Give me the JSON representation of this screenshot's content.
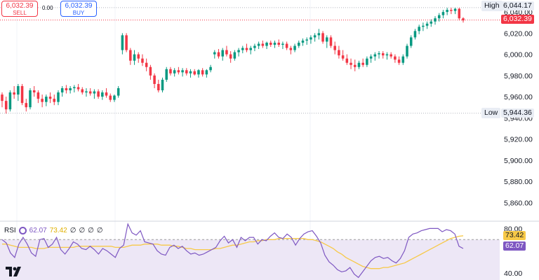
{
  "trade": {
    "sell_price": "6,032.39",
    "sell_label": "SELL",
    "spread": "0.00",
    "buy_price": "6,032.39",
    "buy_label": "BUY"
  },
  "markers": {
    "high_label": "High",
    "high_value": "6,044.17",
    "low_label": "Low",
    "low_value": "5,944.36",
    "last_price": "6,032.39"
  },
  "rsi": {
    "label": "RSI",
    "value": "62.07",
    "ma_value": "73.42",
    "extra_values": [
      "∅",
      "∅",
      "∅",
      "∅"
    ]
  },
  "colors": {
    "up": "#089981",
    "down": "#f23645",
    "rsi_line": "#7e57c2",
    "rsi_ma": "#f7c948",
    "rsi_band": "#ede7f6"
  },
  "chart_data": [
    {
      "type": "candlestick",
      "yticks": [
        5860,
        5880,
        5900,
        5920,
        5940,
        5960,
        5980,
        6000,
        6020,
        6040
      ],
      "ylim": [
        5845,
        6050
      ],
      "high": 6044.17,
      "low": 5944.36,
      "last": 6032.39,
      "candles": [
        {
          "o": 5962,
          "h": 5964,
          "l": 5950,
          "c": 5956
        },
        {
          "o": 5956,
          "h": 5960,
          "l": 5944,
          "c": 5948
        },
        {
          "o": 5948,
          "h": 5966,
          "l": 5946,
          "c": 5964
        },
        {
          "o": 5964,
          "h": 5970,
          "l": 5958,
          "c": 5962
        },
        {
          "o": 5962,
          "h": 5972,
          "l": 5956,
          "c": 5970
        },
        {
          "o": 5970,
          "h": 5972,
          "l": 5952,
          "c": 5954
        },
        {
          "o": 5954,
          "h": 5958,
          "l": 5946,
          "c": 5950
        },
        {
          "o": 5950,
          "h": 5968,
          "l": 5948,
          "c": 5966
        },
        {
          "o": 5966,
          "h": 5970,
          "l": 5960,
          "c": 5964
        },
        {
          "o": 5964,
          "h": 5966,
          "l": 5954,
          "c": 5958
        },
        {
          "o": 5958,
          "h": 5962,
          "l": 5950,
          "c": 5955
        },
        {
          "o": 5955,
          "h": 5962,
          "l": 5951,
          "c": 5960
        },
        {
          "o": 5960,
          "h": 5964,
          "l": 5954,
          "c": 5958
        },
        {
          "o": 5958,
          "h": 5962,
          "l": 5952,
          "c": 5955
        },
        {
          "o": 5955,
          "h": 5966,
          "l": 5952,
          "c": 5964
        },
        {
          "o": 5964,
          "h": 5970,
          "l": 5960,
          "c": 5968
        },
        {
          "o": 5968,
          "h": 5971,
          "l": 5963,
          "c": 5966
        },
        {
          "o": 5966,
          "h": 5970,
          "l": 5963,
          "c": 5968
        },
        {
          "o": 5968,
          "h": 5971,
          "l": 5964,
          "c": 5969
        },
        {
          "o": 5969,
          "h": 5972,
          "l": 5965,
          "c": 5967
        },
        {
          "o": 5967,
          "h": 5969,
          "l": 5962,
          "c": 5964
        },
        {
          "o": 5964,
          "h": 5968,
          "l": 5960,
          "c": 5965
        },
        {
          "o": 5965,
          "h": 5968,
          "l": 5961,
          "c": 5963
        },
        {
          "o": 5963,
          "h": 5967,
          "l": 5958,
          "c": 5965
        },
        {
          "o": 5965,
          "h": 5967,
          "l": 5958,
          "c": 5960
        },
        {
          "o": 5960,
          "h": 5966,
          "l": 5957,
          "c": 5964
        },
        {
          "o": 5964,
          "h": 5968,
          "l": 5959,
          "c": 5961
        },
        {
          "o": 5961,
          "h": 5963,
          "l": 5955,
          "c": 5957
        },
        {
          "o": 5957,
          "h": 5962,
          "l": 5955,
          "c": 5961
        },
        {
          "o": 5961,
          "h": 5970,
          "l": 5959,
          "c": 5968
        },
        {
          "o": 6004,
          "h": 6020,
          "l": 6000,
          "c": 6018
        },
        {
          "o": 6018,
          "h": 6020,
          "l": 6002,
          "c": 6004
        },
        {
          "o": 6004,
          "h": 6006,
          "l": 5990,
          "c": 5994
        },
        {
          "o": 5994,
          "h": 6004,
          "l": 5990,
          "c": 6000
        },
        {
          "o": 6000,
          "h": 6002,
          "l": 5992,
          "c": 5996
        },
        {
          "o": 5996,
          "h": 6000,
          "l": 5989,
          "c": 5992
        },
        {
          "o": 5992,
          "h": 5996,
          "l": 5984,
          "c": 5988
        },
        {
          "o": 5988,
          "h": 5990,
          "l": 5976,
          "c": 5980
        },
        {
          "o": 5980,
          "h": 5982,
          "l": 5968,
          "c": 5972
        },
        {
          "o": 5972,
          "h": 5976,
          "l": 5964,
          "c": 5966
        },
        {
          "o": 5966,
          "h": 5978,
          "l": 5964,
          "c": 5976
        },
        {
          "o": 5976,
          "h": 5988,
          "l": 5974,
          "c": 5986
        },
        {
          "o": 5986,
          "h": 5988,
          "l": 5980,
          "c": 5982
        },
        {
          "o": 5982,
          "h": 5987,
          "l": 5979,
          "c": 5985
        },
        {
          "o": 5985,
          "h": 5988,
          "l": 5981,
          "c": 5983
        },
        {
          "o": 5983,
          "h": 5987,
          "l": 5979,
          "c": 5985
        },
        {
          "o": 5985,
          "h": 5987,
          "l": 5980,
          "c": 5982
        },
        {
          "o": 5982,
          "h": 5986,
          "l": 5978,
          "c": 5984
        },
        {
          "o": 5984,
          "h": 5986,
          "l": 5980,
          "c": 5981
        },
        {
          "o": 5981,
          "h": 5986,
          "l": 5978,
          "c": 5985
        },
        {
          "o": 5985,
          "h": 5987,
          "l": 5979,
          "c": 5981
        },
        {
          "o": 5981,
          "h": 5986,
          "l": 5978,
          "c": 5985
        },
        {
          "o": 5985,
          "h": 5990,
          "l": 5983,
          "c": 5988
        },
        {
          "o": 6000,
          "h": 6004,
          "l": 5996,
          "c": 6002
        },
        {
          "o": 6002,
          "h": 6005,
          "l": 5996,
          "c": 5998
        },
        {
          "o": 5998,
          "h": 6006,
          "l": 5994,
          "c": 6004
        },
        {
          "o": 6004,
          "h": 6008,
          "l": 5998,
          "c": 6000
        },
        {
          "o": 6000,
          "h": 6003,
          "l": 5992,
          "c": 5996
        },
        {
          "o": 5996,
          "h": 6004,
          "l": 5994,
          "c": 6002
        },
        {
          "o": 6002,
          "h": 6006,
          "l": 5998,
          "c": 6004
        },
        {
          "o": 6004,
          "h": 6008,
          "l": 6001,
          "c": 6006
        },
        {
          "o": 6006,
          "h": 6010,
          "l": 6002,
          "c": 6004
        },
        {
          "o": 6004,
          "h": 6008,
          "l": 6000,
          "c": 6006
        },
        {
          "o": 6006,
          "h": 6010,
          "l": 6003,
          "c": 6008
        },
        {
          "o": 6008,
          "h": 6012,
          "l": 6005,
          "c": 6010
        },
        {
          "o": 6010,
          "h": 6013,
          "l": 6006,
          "c": 6008
        },
        {
          "o": 6008,
          "h": 6012,
          "l": 6005,
          "c": 6011
        },
        {
          "o": 6011,
          "h": 6013,
          "l": 6007,
          "c": 6009
        },
        {
          "o": 6009,
          "h": 6013,
          "l": 6006,
          "c": 6011
        },
        {
          "o": 6011,
          "h": 6014,
          "l": 6007,
          "c": 6009
        },
        {
          "o": 6009,
          "h": 6012,
          "l": 6005,
          "c": 6010
        },
        {
          "o": 6010,
          "h": 6012,
          "l": 6004,
          "c": 6006
        },
        {
          "o": 6006,
          "h": 6008,
          "l": 6000,
          "c": 6004
        },
        {
          "o": 6004,
          "h": 6010,
          "l": 6002,
          "c": 6008
        },
        {
          "o": 6008,
          "h": 6013,
          "l": 6006,
          "c": 6011
        },
        {
          "o": 6011,
          "h": 6015,
          "l": 6008,
          "c": 6013
        },
        {
          "o": 6013,
          "h": 6016,
          "l": 6009,
          "c": 6014
        },
        {
          "o": 6014,
          "h": 6018,
          "l": 6010,
          "c": 6016
        },
        {
          "o": 6016,
          "h": 6020,
          "l": 6012,
          "c": 6018
        },
        {
          "o": 6018,
          "h": 6024,
          "l": 6014,
          "c": 6020
        },
        {
          "o": 6020,
          "h": 6022,
          "l": 6010,
          "c": 6012
        },
        {
          "o": 6012,
          "h": 6018,
          "l": 6006,
          "c": 6016
        },
        {
          "o": 6016,
          "h": 6018,
          "l": 6006,
          "c": 6008
        },
        {
          "o": 6008,
          "h": 6012,
          "l": 6000,
          "c": 6004
        },
        {
          "o": 6004,
          "h": 6008,
          "l": 5996,
          "c": 5999
        },
        {
          "o": 5999,
          "h": 6004,
          "l": 5994,
          "c": 5996
        },
        {
          "o": 5996,
          "h": 6000,
          "l": 5990,
          "c": 5992
        },
        {
          "o": 5992,
          "h": 5996,
          "l": 5986,
          "c": 5990
        },
        {
          "o": 5990,
          "h": 5995,
          "l": 5984,
          "c": 5988
        },
        {
          "o": 5988,
          "h": 5994,
          "l": 5986,
          "c": 5992
        },
        {
          "o": 5992,
          "h": 5996,
          "l": 5988,
          "c": 5990
        },
        {
          "o": 5990,
          "h": 5998,
          "l": 5988,
          "c": 5996
        },
        {
          "o": 5996,
          "h": 6000,
          "l": 5992,
          "c": 5998
        },
        {
          "o": 5998,
          "h": 6002,
          "l": 5994,
          "c": 6000
        },
        {
          "o": 6000,
          "h": 6003,
          "l": 5996,
          "c": 6001
        },
        {
          "o": 6001,
          "h": 6003,
          "l": 5996,
          "c": 5999
        },
        {
          "o": 5999,
          "h": 6002,
          "l": 5995,
          "c": 6000
        },
        {
          "o": 6000,
          "h": 6002,
          "l": 5996,
          "c": 5998
        },
        {
          "o": 5998,
          "h": 6000,
          "l": 5992,
          "c": 5995
        },
        {
          "o": 5995,
          "h": 5998,
          "l": 5990,
          "c": 5992
        },
        {
          "o": 5992,
          "h": 6000,
          "l": 5990,
          "c": 5998
        },
        {
          "o": 5998,
          "h": 6010,
          "l": 5996,
          "c": 6008
        },
        {
          "o": 6008,
          "h": 6018,
          "l": 6006,
          "c": 6016
        },
        {
          "o": 6016,
          "h": 6024,
          "l": 6014,
          "c": 6022
        },
        {
          "o": 6022,
          "h": 6028,
          "l": 6019,
          "c": 6026
        },
        {
          "o": 6026,
          "h": 6030,
          "l": 6022,
          "c": 6027
        },
        {
          "o": 6027,
          "h": 6031,
          "l": 6024,
          "c": 6029
        },
        {
          "o": 6029,
          "h": 6033,
          "l": 6026,
          "c": 6031
        },
        {
          "o": 6031,
          "h": 6036,
          "l": 6028,
          "c": 6034
        },
        {
          "o": 6034,
          "h": 6039,
          "l": 6031,
          "c": 6037
        },
        {
          "o": 6037,
          "h": 6042,
          "l": 6034,
          "c": 6040
        },
        {
          "o": 6040,
          "h": 6044,
          "l": 6037,
          "c": 6042
        },
        {
          "o": 6042,
          "h": 6044,
          "l": 6038,
          "c": 6041
        },
        {
          "o": 6041,
          "h": 6044,
          "l": 6038,
          "c": 6043
        },
        {
          "o": 6043,
          "h": 6044,
          "l": 6032,
          "c": 6034
        },
        {
          "o": 6034,
          "h": 6035,
          "l": 6030,
          "c": 6032
        }
      ]
    },
    {
      "type": "line",
      "name": "RSI",
      "yticks": [
        40,
        80
      ],
      "ylim": [
        35,
        84
      ],
      "band": [
        30,
        70
      ],
      "value": 62.07,
      "ma_value": 73.42,
      "rsi": [
        70,
        67,
        58,
        54,
        66,
        72,
        66,
        58,
        55,
        70,
        71,
        63,
        66,
        72,
        61,
        57,
        62,
        68,
        66,
        62,
        61,
        64,
        61,
        57,
        62,
        60,
        57,
        54,
        62,
        65,
        84,
        76,
        74,
        78,
        68,
        67,
        66,
        60,
        57,
        56,
        63,
        65,
        62,
        64,
        60,
        57,
        58,
        56,
        57,
        59,
        61,
        63,
        69,
        73,
        67,
        70,
        63,
        72,
        69,
        72,
        72,
        66,
        70,
        69,
        73,
        76,
        72,
        71,
        75,
        72,
        65,
        71,
        75,
        77,
        78,
        73,
        67,
        56,
        50,
        47,
        43,
        41,
        42,
        45,
        39,
        36,
        41,
        46,
        51,
        54,
        55,
        53,
        54,
        51,
        49,
        53,
        60,
        72,
        75,
        76,
        78,
        79,
        80,
        80,
        80,
        77,
        79,
        78,
        75,
        64,
        62
      ],
      "ma": [
        66,
        66,
        65,
        64,
        63,
        63,
        63,
        63,
        62,
        62,
        62,
        63,
        63,
        63,
        63,
        63,
        63,
        63,
        64,
        64,
        64,
        64,
        64,
        64,
        64,
        64,
        64,
        63,
        63,
        63,
        64,
        65,
        65,
        65,
        66,
        66,
        66,
        66,
        65,
        65,
        65,
        64,
        64,
        63,
        62,
        62,
        61,
        61,
        61,
        61,
        61,
        62,
        62,
        63,
        64,
        65,
        65,
        66,
        67,
        68,
        68,
        69,
        69,
        70,
        70,
        70,
        71,
        71,
        71,
        71,
        71,
        71,
        71,
        70,
        70,
        69,
        68,
        66,
        64,
        62,
        59,
        57,
        54,
        52,
        50,
        48,
        46,
        45,
        44,
        44,
        44,
        45,
        45,
        46,
        47,
        48,
        49,
        51,
        53,
        55,
        57,
        59,
        61,
        63,
        65,
        67,
        69,
        71,
        72,
        73,
        73.42
      ]
    }
  ]
}
